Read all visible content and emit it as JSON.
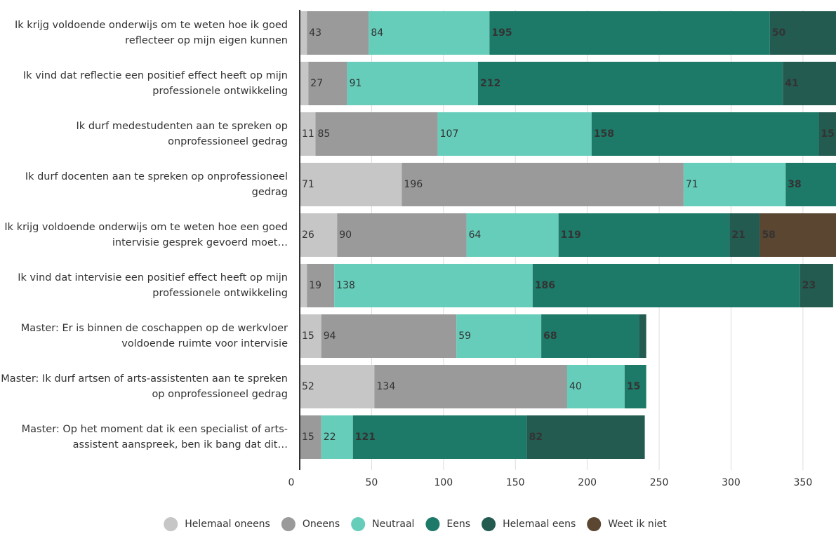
{
  "chart_data": {
    "type": "stacked-barh",
    "categories": [
      "Ik krijg voldoende onderwijs om te weten hoe ik goed reflecteer op mijn eigen kunnen",
      "Ik vind dat reflectie een positief effect heeft op mijn professionele ontwikkeling",
      "Ik durf medestudenten aan te spreken op onprofessioneel gedrag",
      "Ik durf docenten aan te spreken op onprofessioneel gedrag",
      "Ik krijg voldoende onderwijs om te weten hoe een goed intervisie gesprek gevoerd moet…",
      "Ik vind dat intervisie een positief effect heeft op mijn professionele ontwikkeling",
      "Master: Er is binnen de coschappen op de werkvloer voldoende ruimte voor intervisie",
      "Master: Ik durf artsen of arts-assistenten aan te spreken op onprofessioneel gedrag",
      "Master: Op het moment dat ik een specialist of arts-assistent aanspreek, ben ik bang dat dit…"
    ],
    "series": [
      {
        "name": "Helemaal oneens",
        "color": "#c6c6c6",
        "values": [
          5,
          6,
          11,
          71,
          26,
          5,
          15,
          52,
          null
        ]
      },
      {
        "name": "Oneens",
        "color": "#9a9a9a",
        "values": [
          43,
          27,
          85,
          196,
          90,
          19,
          94,
          134,
          15
        ]
      },
      {
        "name": "Neutraal",
        "color": "#66cdbb",
        "values": [
          84,
          91,
          107,
          71,
          64,
          138,
          59,
          40,
          22
        ]
      },
      {
        "name": "Eens",
        "color": "#1d7a68",
        "values": [
          195,
          212,
          158,
          38,
          119,
          186,
          68,
          15,
          121
        ]
      },
      {
        "name": "Helemaal eens",
        "color": "#235b50",
        "values": [
          50,
          41,
          15,
          null,
          21,
          23,
          5,
          null,
          82
        ]
      },
      {
        "name": "Weet ik niet",
        "color": "#5a4631",
        "values": [
          null,
          null,
          null,
          null,
          58,
          null,
          null,
          null,
          null
        ]
      }
    ],
    "xlim": [
      0,
      373
    ],
    "xticks": [
      0,
      50,
      100,
      150,
      200,
      250,
      300,
      350
    ],
    "grid": true,
    "legend": "bottom"
  }
}
